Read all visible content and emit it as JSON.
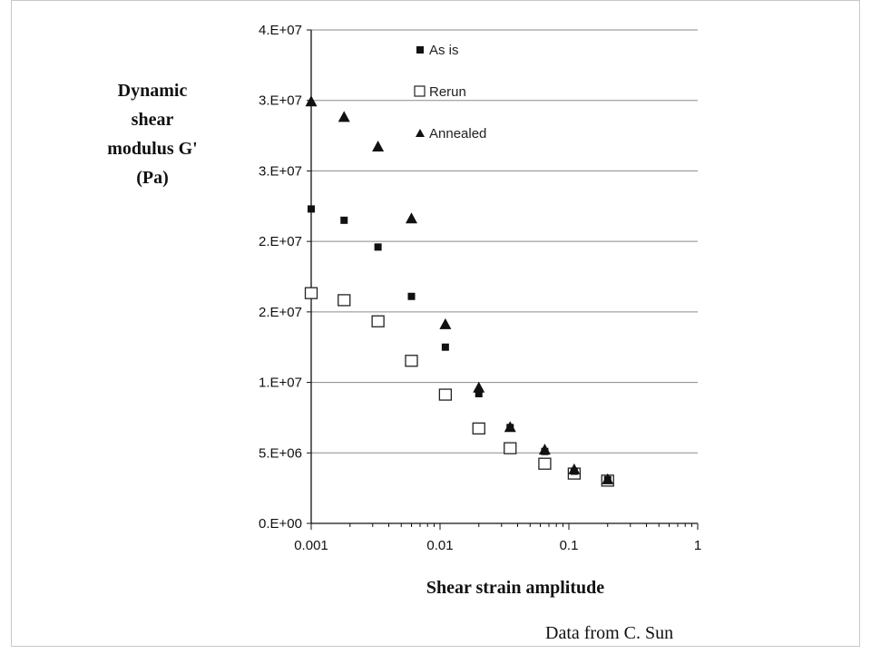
{
  "chart_data": {
    "type": "scatter",
    "title": "",
    "ylabel": [
      "Dynamic",
      "shear",
      "modulus G'",
      "(Pa)"
    ],
    "xlabel": "Shear strain amplitude",
    "x_scale": "log",
    "xlim": [
      0.001,
      1
    ],
    "ylim": [
      0,
      35000000
    ],
    "x_ticks": [
      {
        "value": 0.001,
        "label": "0.001"
      },
      {
        "value": 0.01,
        "label": "0.01"
      },
      {
        "value": 0.1,
        "label": "0.1"
      },
      {
        "value": 1,
        "label": "1"
      }
    ],
    "y_ticks": [
      {
        "value": 0,
        "label": "0.E+00"
      },
      {
        "value": 5000000,
        "label": "5.E+06"
      },
      {
        "value": 10000000,
        "label": "1.E+07"
      },
      {
        "value": 15000000,
        "label": "2.E+07"
      },
      {
        "value": 20000000,
        "label": "2.E+07"
      },
      {
        "value": 25000000,
        "label": "3.E+07"
      },
      {
        "value": 30000000,
        "label": "3.E+07"
      },
      {
        "value": 35000000,
        "label": "4.E+07"
      }
    ],
    "grid": "horizontal",
    "legend_position": "top",
    "series": [
      {
        "name": "As is",
        "marker": "filled-square",
        "x": [
          0.001,
          0.0018,
          0.0033,
          0.006,
          0.011,
          0.02,
          0.035,
          0.065,
          0.11,
          0.2
        ],
        "y": [
          22300000,
          21500000,
          19600000,
          16100000,
          12500000,
          9200000,
          6800000,
          5100000,
          3700000,
          3100000
        ]
      },
      {
        "name": "Rerun",
        "marker": "open-square",
        "x": [
          0.001,
          0.0018,
          0.0033,
          0.006,
          0.011,
          0.02,
          0.035,
          0.065,
          0.11,
          0.2
        ],
        "y": [
          16300000,
          15800000,
          14300000,
          11500000,
          9100000,
          6700000,
          5300000,
          4200000,
          3500000,
          3000000
        ]
      },
      {
        "name": "Annealed",
        "marker": "filled-triangle",
        "x": [
          0.001,
          0.0018,
          0.0033,
          0.006,
          0.011,
          0.02,
          0.035,
          0.065,
          0.11,
          0.2
        ],
        "y": [
          29900000,
          28800000,
          26700000,
          21600000,
          14100000,
          9600000,
          6800000,
          5200000,
          3800000,
          3100000
        ]
      }
    ]
  },
  "credit": "Data from C. Sun"
}
